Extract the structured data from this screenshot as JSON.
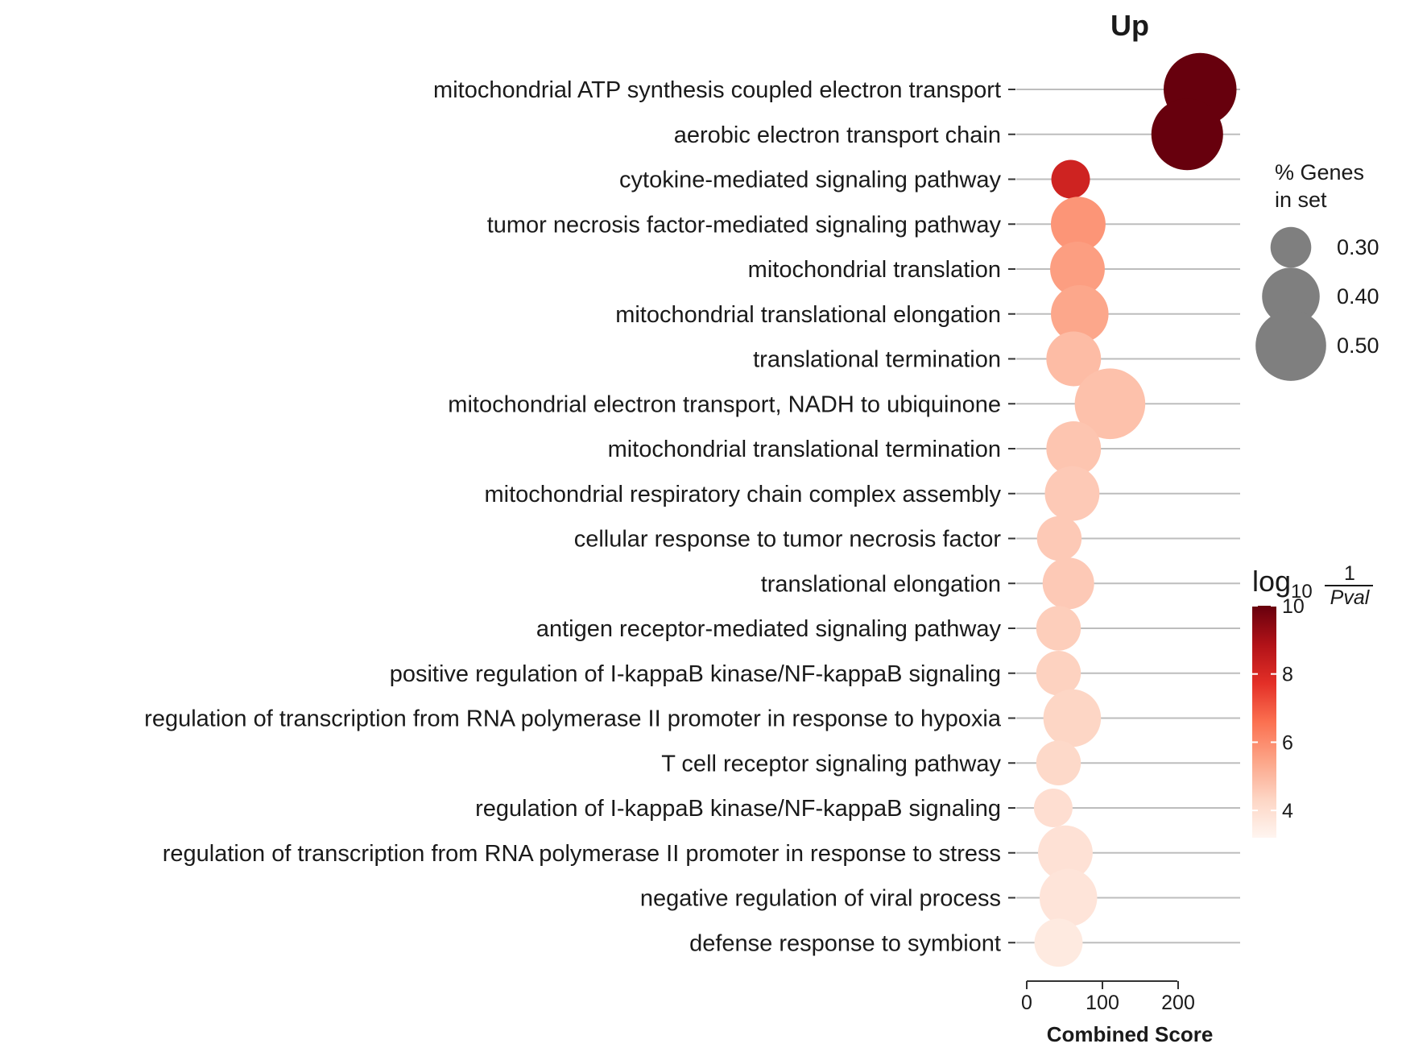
{
  "chart_data": {
    "type": "scatter",
    "title": "Up",
    "xlabel": "Combined Score",
    "x_ticks": [
      0,
      100,
      200
    ],
    "xlim": [
      0,
      280
    ],
    "grid": "horizontal",
    "size_legend": {
      "title_lines": [
        "% Genes",
        "in set"
      ],
      "entries": [
        {
          "value": 0.3,
          "label": "0.30"
        },
        {
          "value": 0.4,
          "label": "0.40"
        },
        {
          "value": 0.5,
          "label": "0.50"
        }
      ]
    },
    "color_legend": {
      "title": "log10 1/Pval",
      "range": [
        3.2,
        10
      ],
      "ticks": [
        4,
        6,
        8,
        10
      ],
      "colors": [
        "#fff5f0",
        "#fdd5c4",
        "#fca487",
        "#fb7050",
        "#e32f27",
        "#b11218",
        "#67000d"
      ]
    },
    "terms": [
      {
        "label": "mitochondrial ATP synthesis coupled electron transport",
        "score": 229,
        "genes_pct": 0.52,
        "log10_inv_p": 10.3
      },
      {
        "label": "aerobic electron transport chain",
        "score": 212,
        "genes_pct": 0.51,
        "log10_inv_p": 10.2
      },
      {
        "label": "cytokine-mediated signaling pathway",
        "score": 58,
        "genes_pct": 0.29,
        "log10_inv_p": 8.2
      },
      {
        "label": "tumor necrosis factor-mediated signaling pathway",
        "score": 68,
        "genes_pct": 0.38,
        "log10_inv_p": 5.8
      },
      {
        "label": "mitochondrial translation",
        "score": 67,
        "genes_pct": 0.38,
        "log10_inv_p": 5.6
      },
      {
        "label": "mitochondrial translational elongation",
        "score": 70,
        "genes_pct": 0.4,
        "log10_inv_p": 5.4
      },
      {
        "label": "translational termination",
        "score": 62,
        "genes_pct": 0.38,
        "log10_inv_p": 4.9
      },
      {
        "label": "mitochondrial electron transport, NADH to ubiquinone",
        "score": 110,
        "genes_pct": 0.5,
        "log10_inv_p": 4.8
      },
      {
        "label": "mitochondrial translational termination",
        "score": 62,
        "genes_pct": 0.38,
        "log10_inv_p": 4.7
      },
      {
        "label": "mitochondrial respiratory chain complex assembly",
        "score": 60,
        "genes_pct": 0.38,
        "log10_inv_p": 4.6
      },
      {
        "label": "cellular response to tumor necrosis factor",
        "score": 43,
        "genes_pct": 0.32,
        "log10_inv_p": 4.6
      },
      {
        "label": "translational elongation",
        "score": 55,
        "genes_pct": 0.36,
        "log10_inv_p": 4.6
      },
      {
        "label": "antigen receptor-mediated signaling pathway",
        "score": 42,
        "genes_pct": 0.32,
        "log10_inv_p": 4.5
      },
      {
        "label": "positive regulation of I-kappaB kinase/NF-kappaB signaling",
        "score": 42,
        "genes_pct": 0.32,
        "log10_inv_p": 4.4
      },
      {
        "label": "regulation of transcription from RNA polymerase II promoter in response to hypoxia",
        "score": 60,
        "genes_pct": 0.4,
        "log10_inv_p": 4.3
      },
      {
        "label": "T cell receptor signaling pathway",
        "score": 42,
        "genes_pct": 0.32,
        "log10_inv_p": 4.2
      },
      {
        "label": "regulation of I-kappaB kinase/NF-kappaB signaling",
        "score": 35,
        "genes_pct": 0.29,
        "log10_inv_p": 4.0
      },
      {
        "label": "regulation of transcription from RNA polymerase II promoter in response to stress",
        "score": 51,
        "genes_pct": 0.38,
        "log10_inv_p": 3.9
      },
      {
        "label": "negative regulation of viral process",
        "score": 55,
        "genes_pct": 0.4,
        "log10_inv_p": 3.8
      },
      {
        "label": "defense response to symbiont",
        "score": 42,
        "genes_pct": 0.34,
        "log10_inv_p": 3.6
      }
    ]
  }
}
